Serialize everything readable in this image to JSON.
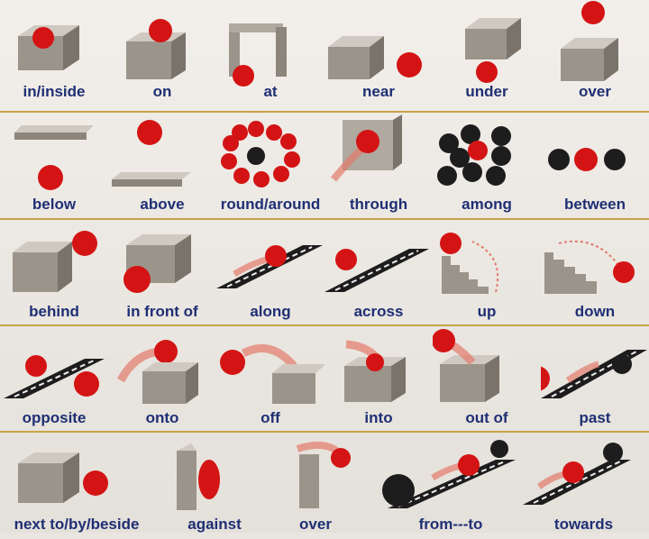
{
  "rows": [
    [
      "in/inside",
      "on",
      "at",
      "near",
      "under",
      "over"
    ],
    [
      "below",
      "above",
      "round/around",
      "through",
      "among",
      "between"
    ],
    [
      "behind",
      "in front of",
      "along",
      "across",
      "up",
      "down"
    ],
    [
      "opposite",
      "onto",
      "off",
      "into",
      "out of",
      "past"
    ],
    [
      "next to/by/beside",
      "against",
      "over",
      "from---to",
      "towards"
    ]
  ],
  "colors": {
    "label": "#1f2f74",
    "divider": "#c9a24a",
    "ball": "#d41414",
    "dark_ball": "#1d1d1d",
    "box": "#9b948a"
  }
}
